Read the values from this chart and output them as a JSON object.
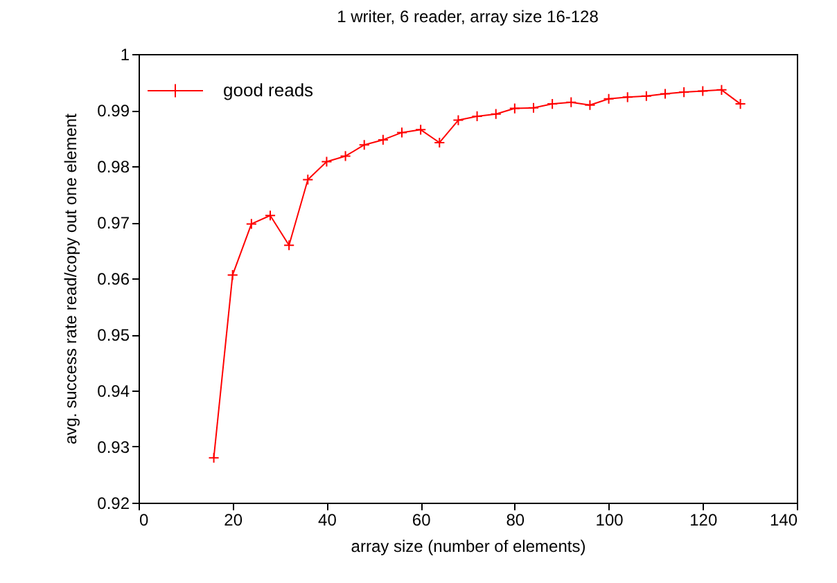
{
  "chart_data": {
    "type": "line",
    "title": "1 writer, 6 reader, array size 16-128",
    "xlabel": "array size (number of elements)",
    "ylabel": "avg. success rate read/copy out one element",
    "x": [
      16,
      20,
      24,
      28,
      32,
      36,
      40,
      44,
      48,
      52,
      56,
      60,
      64,
      68,
      72,
      76,
      80,
      84,
      88,
      92,
      96,
      100,
      104,
      108,
      112,
      116,
      120,
      124,
      128
    ],
    "series": [
      {
        "name": "good reads",
        "color": "#ff0000",
        "values": [
          0.928,
          0.9606,
          0.9697,
          0.9712,
          0.9659,
          0.9776,
          0.9808,
          0.9818,
          0.9838,
          0.9847,
          0.986,
          0.9865,
          0.9842,
          0.9882,
          0.9889,
          0.9893,
          0.9903,
          0.9904,
          0.9911,
          0.9914,
          0.9909,
          0.992,
          0.9923,
          0.9925,
          0.9929,
          0.9932,
          0.9934,
          0.9936,
          0.9911
        ]
      }
    ],
    "xlim": [
      0,
      140
    ],
    "xticks": [
      0,
      20,
      40,
      60,
      80,
      100,
      120,
      140
    ],
    "ylim": [
      0.92,
      1
    ],
    "yticks": [
      0.92,
      0.93,
      0.94,
      0.95,
      0.96,
      0.97,
      0.98,
      0.99,
      1
    ],
    "grid": false,
    "legend": "top left",
    "marker": "cross",
    "line_style": "solid"
  }
}
